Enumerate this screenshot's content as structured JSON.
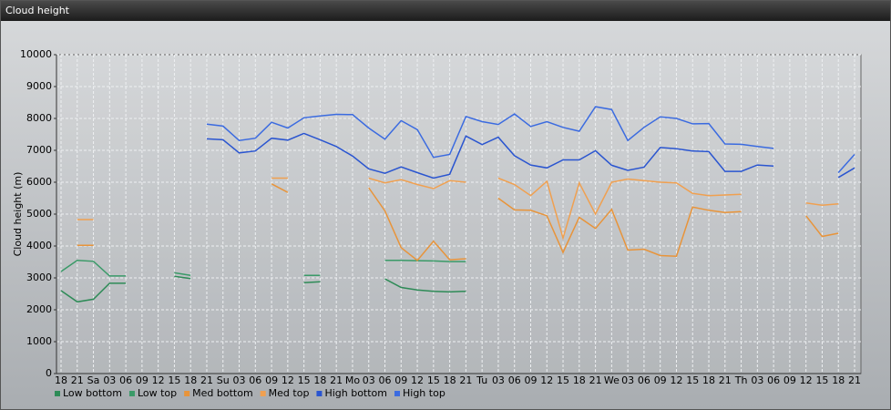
{
  "window_title": "Cloud height",
  "chart_data": {
    "type": "line",
    "ylabel": "Cloud height (m)",
    "categories": [
      "18",
      "21",
      "Sa",
      "03",
      "06",
      "09",
      "12",
      "15",
      "18",
      "21",
      "Su",
      "03",
      "06",
      "09",
      "12",
      "15",
      "18",
      "21",
      "Mo",
      "03",
      "06",
      "09",
      "12",
      "15",
      "18",
      "21",
      "Tu",
      "03",
      "06",
      "09",
      "12",
      "15",
      "18",
      "21",
      "We",
      "03",
      "06",
      "09",
      "12",
      "15",
      "18",
      "21",
      "Th",
      "03",
      "06",
      "09",
      "12",
      "15",
      "18",
      "21"
    ],
    "ylim": [
      0,
      10000
    ],
    "yticks": [
      0,
      1000,
      2000,
      3000,
      4000,
      5000,
      6000,
      7000,
      8000,
      9000,
      10000
    ],
    "grid": true,
    "series": [
      {
        "name": "Low bottom",
        "color": "#2e8b57",
        "values": [
          2600,
          2250,
          2330,
          2830,
          2830,
          null,
          null,
          3050,
          2980,
          null,
          null,
          null,
          null,
          null,
          null,
          2850,
          2880,
          null,
          null,
          null,
          2970,
          2700,
          2620,
          2580,
          2560,
          2580,
          null,
          null,
          null,
          null,
          null,
          null,
          null,
          null,
          null,
          null,
          null,
          null,
          null,
          null,
          null,
          null,
          null,
          null,
          null,
          null,
          null,
          null,
          null,
          null
        ]
      },
      {
        "name": "Low top",
        "color": "#3a9a68",
        "values": [
          3200,
          3550,
          3520,
          3060,
          3060,
          null,
          null,
          3160,
          3080,
          null,
          null,
          null,
          null,
          null,
          null,
          3080,
          3080,
          null,
          null,
          null,
          3550,
          3550,
          3540,
          3530,
          3510,
          3510,
          null,
          null,
          null,
          null,
          null,
          null,
          null,
          null,
          null,
          null,
          null,
          null,
          null,
          null,
          null,
          null,
          null,
          null,
          null,
          null,
          null,
          null,
          null,
          null
        ]
      },
      {
        "name": "Med bottom",
        "color": "#e8943a",
        "values": [
          null,
          4020,
          4020,
          null,
          null,
          null,
          null,
          null,
          null,
          null,
          null,
          null,
          null,
          5950,
          5680,
          null,
          null,
          null,
          null,
          5830,
          5100,
          3950,
          3550,
          4150,
          3570,
          3600,
          null,
          5500,
          5130,
          5120,
          4950,
          3800,
          4900,
          4550,
          5150,
          3870,
          3900,
          3700,
          3680,
          5220,
          5120,
          5050,
          5080,
          null,
          null,
          null,
          4950,
          4300,
          4400,
          null
        ]
      },
      {
        "name": "Med top",
        "color": "#f0a050",
        "values": [
          null,
          4830,
          4830,
          null,
          null,
          null,
          null,
          null,
          null,
          null,
          null,
          null,
          null,
          6130,
          6130,
          null,
          null,
          null,
          null,
          6130,
          5980,
          6080,
          5930,
          5800,
          6050,
          6000,
          null,
          6130,
          5930,
          5580,
          6030,
          4250,
          5980,
          5000,
          6000,
          6100,
          6050,
          6000,
          5980,
          5650,
          5580,
          5600,
          5620,
          null,
          null,
          null,
          5350,
          5280,
          5320,
          null
        ]
      },
      {
        "name": "High bottom",
        "color": "#2a55d0",
        "values": [
          null,
          null,
          null,
          null,
          null,
          null,
          null,
          null,
          null,
          7360,
          7330,
          6920,
          6980,
          7380,
          7320,
          7530,
          7330,
          7120,
          6820,
          6420,
          6280,
          6480,
          6300,
          6130,
          6250,
          7450,
          7180,
          7410,
          6830,
          6540,
          6450,
          6700,
          6700,
          6990,
          6530,
          6370,
          6470,
          7090,
          7050,
          6980,
          6960,
          6340,
          6340,
          6540,
          6510,
          null,
          null,
          null,
          6150,
          6450
        ]
      },
      {
        "name": "High top",
        "color": "#3b6be0",
        "values": [
          null,
          null,
          null,
          null,
          null,
          null,
          null,
          null,
          null,
          7820,
          7760,
          7310,
          7380,
          7880,
          7700,
          8020,
          8080,
          8130,
          8120,
          7700,
          7350,
          7930,
          7650,
          6780,
          6870,
          8060,
          7900,
          7810,
          8140,
          7750,
          7900,
          7720,
          7600,
          8370,
          8280,
          7310,
          7720,
          8050,
          8000,
          7830,
          7840,
          7200,
          7190,
          7120,
          7060,
          null,
          null,
          null,
          6300,
          6870
        ]
      }
    ]
  }
}
